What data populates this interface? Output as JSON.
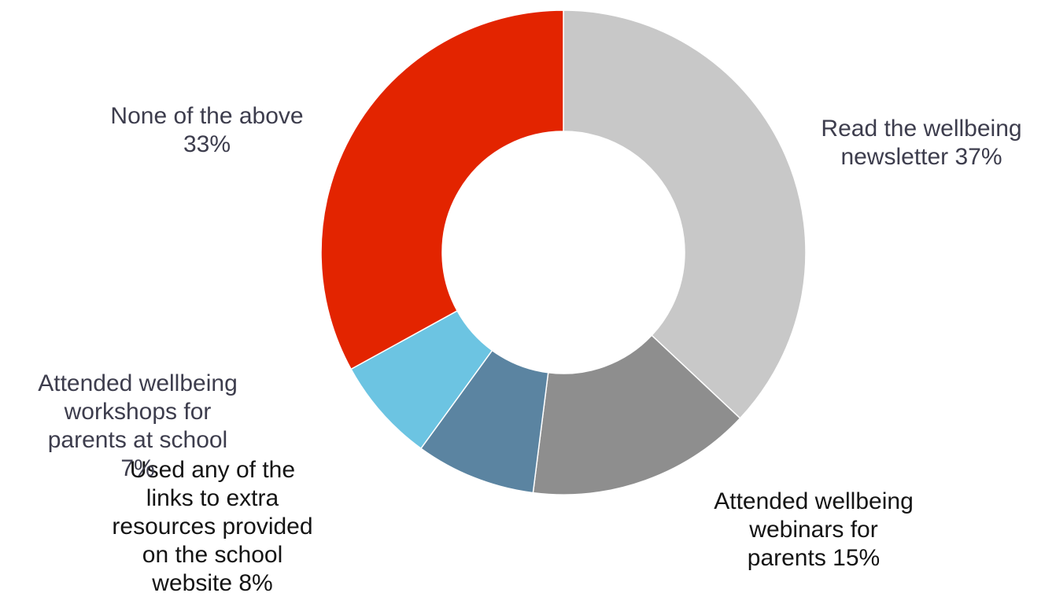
{
  "chart_data": {
    "type": "pie",
    "donut": true,
    "legend": "none",
    "categories": [
      "Read the wellbeing newsletter",
      "Attended wellbeing webinars for parents",
      "Used any of the links to extra resources provided on the school website",
      "Attended wellbeing workshops for parents at school",
      "None of the above"
    ],
    "values": [
      37,
      15,
      8,
      7,
      33
    ],
    "unit": "%",
    "colors": [
      "#c8c8c8",
      "#8e8e8e",
      "#5b84a1",
      "#6cc4e2",
      "#e32400"
    ],
    "labels": [
      "Read the wellbeing\nnewsletter 37%",
      "Attended wellbeing\nwebinars for\nparents 15%",
      "Used any of the\nlinks to extra\nresources provided\non the school\nwebsite 8%",
      "Attended wellbeing\nworkshops for\nparents at school\n7%",
      "None of the above\n33%"
    ]
  }
}
